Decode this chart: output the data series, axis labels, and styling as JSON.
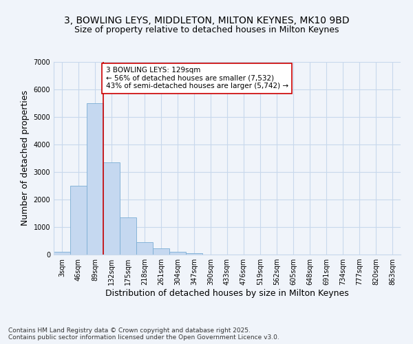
{
  "title1": "3, BOWLING LEYS, MIDDLETON, MILTON KEYNES, MK10 9BD",
  "title2": "Size of property relative to detached houses in Milton Keynes",
  "xlabel": "Distribution of detached houses by size in Milton Keynes",
  "ylabel": "Number of detached properties",
  "categories": [
    "3sqm",
    "46sqm",
    "89sqm",
    "132sqm",
    "175sqm",
    "218sqm",
    "261sqm",
    "304sqm",
    "347sqm",
    "390sqm",
    "433sqm",
    "476sqm",
    "519sqm",
    "562sqm",
    "605sqm",
    "648sqm",
    "691sqm",
    "734sqm",
    "777sqm",
    "820sqm",
    "863sqm"
  ],
  "values": [
    100,
    2500,
    5500,
    3350,
    1350,
    450,
    220,
    100,
    50,
    0,
    0,
    0,
    0,
    0,
    0,
    0,
    0,
    0,
    0,
    0,
    0
  ],
  "bar_color": "#c5d8f0",
  "bar_edge_color": "#7aadd4",
  "vline_color": "#cc0000",
  "vline_x": 2.5,
  "annotation_text": "3 BOWLING LEYS: 129sqm\n← 56% of detached houses are smaller (7,532)\n43% of semi-detached houses are larger (5,742) →",
  "annotation_box_facecolor": "#ffffff",
  "annotation_box_edgecolor": "#cc0000",
  "ylim": [
    0,
    7000
  ],
  "yticks": [
    0,
    1000,
    2000,
    3000,
    4000,
    5000,
    6000,
    7000
  ],
  "background_color": "#f0f4fa",
  "plot_bg_color": "#f0f4fa",
  "grid_color": "#c8d8ec",
  "footer_text": "Contains HM Land Registry data © Crown copyright and database right 2025.\nContains public sector information licensed under the Open Government Licence v3.0.",
  "title_fontsize": 10,
  "subtitle_fontsize": 9,
  "axis_label_fontsize": 9,
  "tick_fontsize": 7,
  "annotation_fontsize": 7.5,
  "footer_fontsize": 6.5
}
